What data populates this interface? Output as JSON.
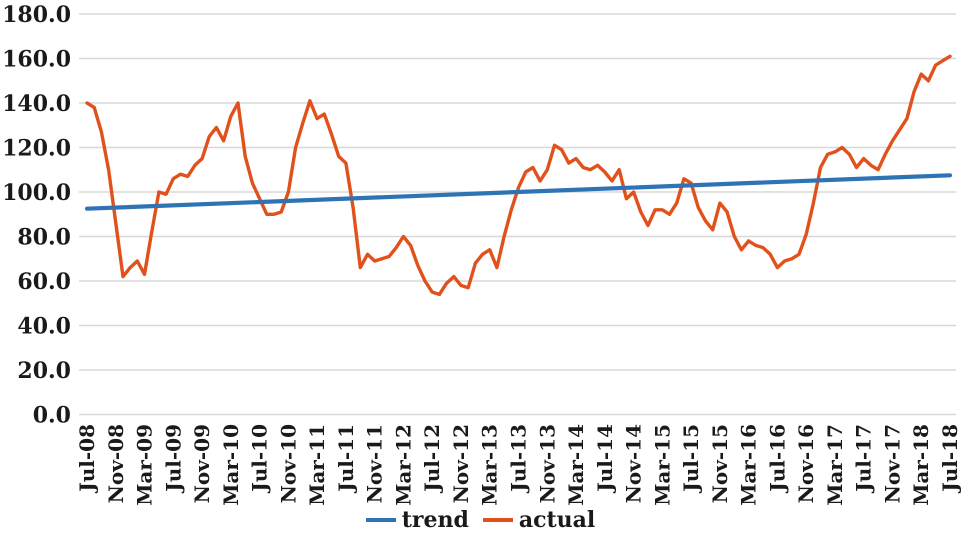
{
  "chart_data": {
    "type": "line",
    "title": "",
    "xlabel": "",
    "ylabel": "",
    "x_start": "Jul-08",
    "x_end": "Jul-18",
    "x_interval_months": 1,
    "x_tick_labels": [
      "Jul-08",
      "Nov-08",
      "Mar-09",
      "Jul-09",
      "Nov-09",
      "Mar-10",
      "Jul-10",
      "Nov-10",
      "Mar-11",
      "Jul-11",
      "Nov-11",
      "Mar-12",
      "Jul-12",
      "Nov-12",
      "Mar-13",
      "Jul-13",
      "Nov-13",
      "Mar-14",
      "Jul-14",
      "Nov-14",
      "Mar-15",
      "Jul-15",
      "Nov-15",
      "Mar-16",
      "Jul-16",
      "Nov-16",
      "Mar-17",
      "Jul-17",
      "Nov-17",
      "Mar-18",
      "Jul-18"
    ],
    "x_tick_step": 4,
    "y_axis": {
      "min": 0,
      "max": 180,
      "tick_interval": 20,
      "tick_labels": [
        "180.0",
        "160.0",
        "140.0",
        "120.0",
        "100.0",
        "80.0",
        "60.0",
        "40.0",
        "20.0",
        "0.0"
      ]
    },
    "grid": "horizontal",
    "grid_color": "#d8d8d8",
    "text_color": "#1a1a1a",
    "legend_position": "bottom",
    "series": [
      {
        "name": "trend",
        "color": "#2e74b5",
        "shape": "linear",
        "start": 92.5,
        "end": 107.5,
        "stroke_width": 4.2
      },
      {
        "name": "actual",
        "color": "#e1511b",
        "shape": "poly",
        "stroke_width": 3.4,
        "values": [
          140,
          138,
          127,
          110,
          86,
          62,
          66,
          69,
          63,
          82,
          100,
          99,
          106,
          108,
          107,
          112,
          115,
          125,
          129,
          123,
          134,
          140,
          116,
          104,
          97,
          90,
          90,
          91,
          100,
          120,
          131,
          141,
          133,
          135,
          126,
          116,
          113,
          93,
          66,
          72,
          69,
          70,
          71,
          75,
          80,
          76,
          67,
          60,
          55,
          54,
          59,
          62,
          58,
          57,
          68,
          72,
          74,
          66,
          80,
          92,
          102,
          109,
          111,
          105,
          110,
          121,
          119,
          113,
          115,
          111,
          110,
          112,
          109,
          105,
          110,
          97,
          100,
          91,
          85,
          92,
          92,
          90,
          95,
          106,
          104,
          93,
          87,
          83,
          95,
          91,
          80,
          74,
          78,
          76,
          75,
          72,
          66,
          69,
          70,
          72,
          81,
          95,
          111,
          117,
          118,
          120,
          117,
          111,
          115,
          112,
          110,
          117,
          123,
          128,
          133,
          145,
          153,
          150,
          157,
          159,
          161
        ]
      }
    ]
  },
  "legend": {
    "trend_label": "trend",
    "actual_label": "actual"
  }
}
